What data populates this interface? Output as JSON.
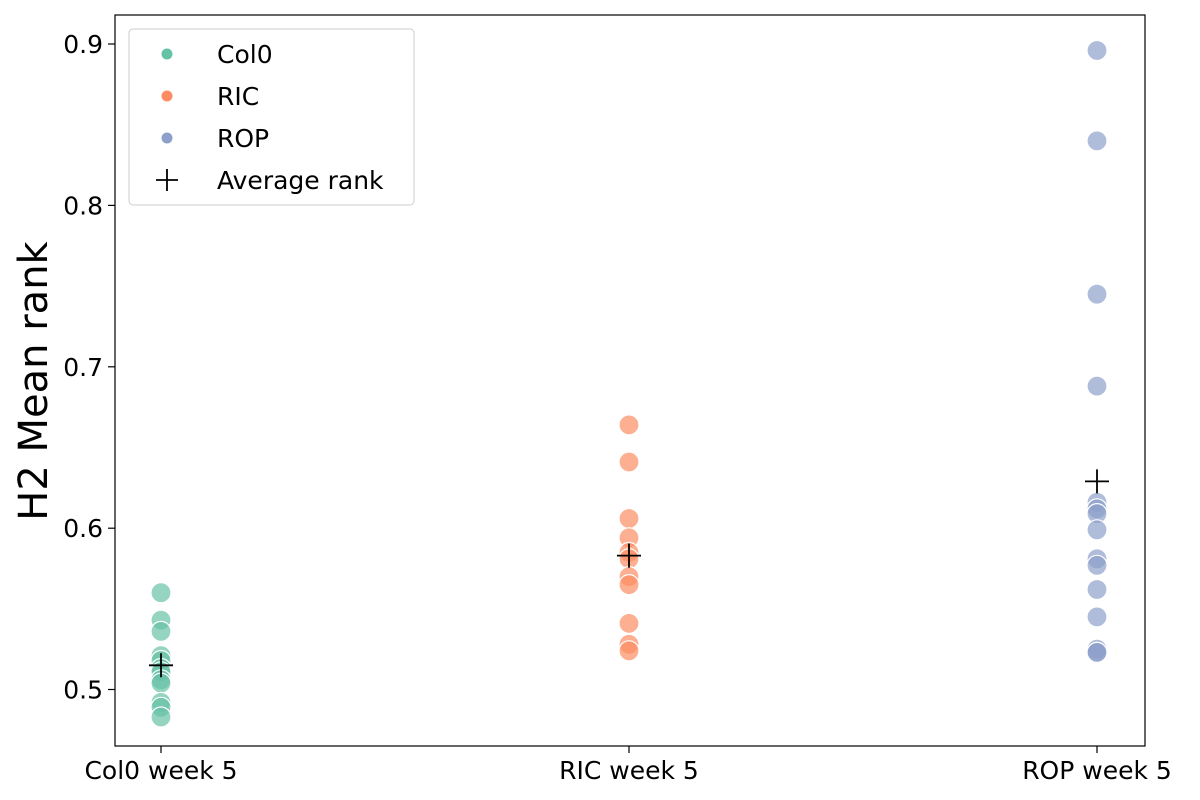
{
  "chart_data": {
    "type": "scatter",
    "title": "",
    "xlabel": "",
    "ylabel": "H2 Mean rank",
    "categories": [
      "Col0 week 5",
      "RIC week 5",
      "ROP week 5"
    ],
    "ylim": [
      0.465,
      0.918
    ],
    "yticks": [
      0.5,
      0.6,
      0.7,
      0.8,
      0.9
    ],
    "ytick_labels": [
      "0.5",
      "0.6",
      "0.7",
      "0.8",
      "0.9"
    ],
    "grid": false,
    "legend_position": "top-left",
    "series": [
      {
        "name": "Col0",
        "color": "#66c2a5",
        "category": "Col0 week 5",
        "values": [
          0.56,
          0.543,
          0.536,
          0.521,
          0.518,
          0.513,
          0.511,
          0.506,
          0.504,
          0.492,
          0.489,
          0.483
        ]
      },
      {
        "name": "RIC",
        "color": "#fc8d62",
        "category": "RIC week 5",
        "values": [
          0.664,
          0.641,
          0.606,
          0.594,
          0.585,
          0.581,
          0.57,
          0.565,
          0.541,
          0.528,
          0.524
        ]
      },
      {
        "name": "ROP",
        "color": "#8da0cb",
        "category": "ROP week 5",
        "values": [
          0.896,
          0.84,
          0.745,
          0.688,
          0.616,
          0.612,
          0.609,
          0.599,
          0.581,
          0.577,
          0.562,
          0.545,
          0.525,
          0.523,
          0.523
        ]
      }
    ],
    "average_rank": {
      "name": "Average rank",
      "color": "#000000",
      "values": [
        0.515,
        0.583,
        0.629
      ]
    }
  }
}
